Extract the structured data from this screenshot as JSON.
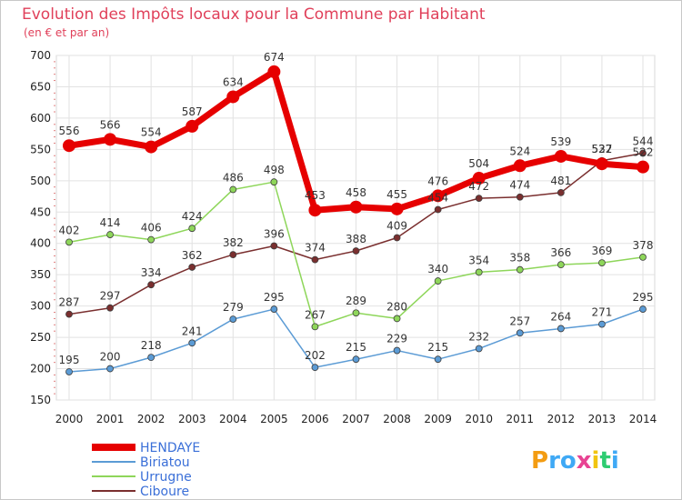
{
  "chart_data": {
    "type": "line",
    "title": "Evolution des Impôts locaux pour la Commune par Habitant",
    "subtitle": "(en € et par an)",
    "x": [
      "2000",
      "2001",
      "2002",
      "2003",
      "2004",
      "2005",
      "2006",
      "2007",
      "2008",
      "2009",
      "2010",
      "2011",
      "2012",
      "2013",
      "2014"
    ],
    "ylim": [
      150,
      700
    ],
    "yticks": [
      150,
      200,
      250,
      300,
      350,
      400,
      450,
      500,
      550,
      600,
      650,
      700
    ],
    "grid": true,
    "legend_position": "bottom-left",
    "series": [
      {
        "name": "Ciboure",
        "color": "#7a2f2f",
        "values": [
          287,
          297,
          334,
          362,
          382,
          396,
          374,
          388,
          409,
          454,
          472,
          474,
          481,
          532,
          544
        ]
      },
      {
        "name": "Urrugne",
        "color": "#8ed65a",
        "values": [
          402,
          414,
          406,
          424,
          486,
          498,
          267,
          289,
          280,
          340,
          354,
          358,
          366,
          369,
          378
        ]
      },
      {
        "name": "Biriatou",
        "color": "#5b9bd5",
        "values": [
          195,
          200,
          218,
          241,
          279,
          295,
          202,
          215,
          229,
          215,
          232,
          257,
          264,
          271,
          295
        ]
      },
      {
        "name": "HENDAYE",
        "color": "#e60000",
        "values": [
          556,
          566,
          554,
          587,
          634,
          674,
          453,
          458,
          455,
          476,
          504,
          524,
          539,
          527,
          522
        ]
      }
    ],
    "legend": [
      "HENDAYE",
      "Biriatou",
      "Urrugne",
      "Ciboure"
    ]
  },
  "brand": {
    "name": "Proxiti"
  }
}
